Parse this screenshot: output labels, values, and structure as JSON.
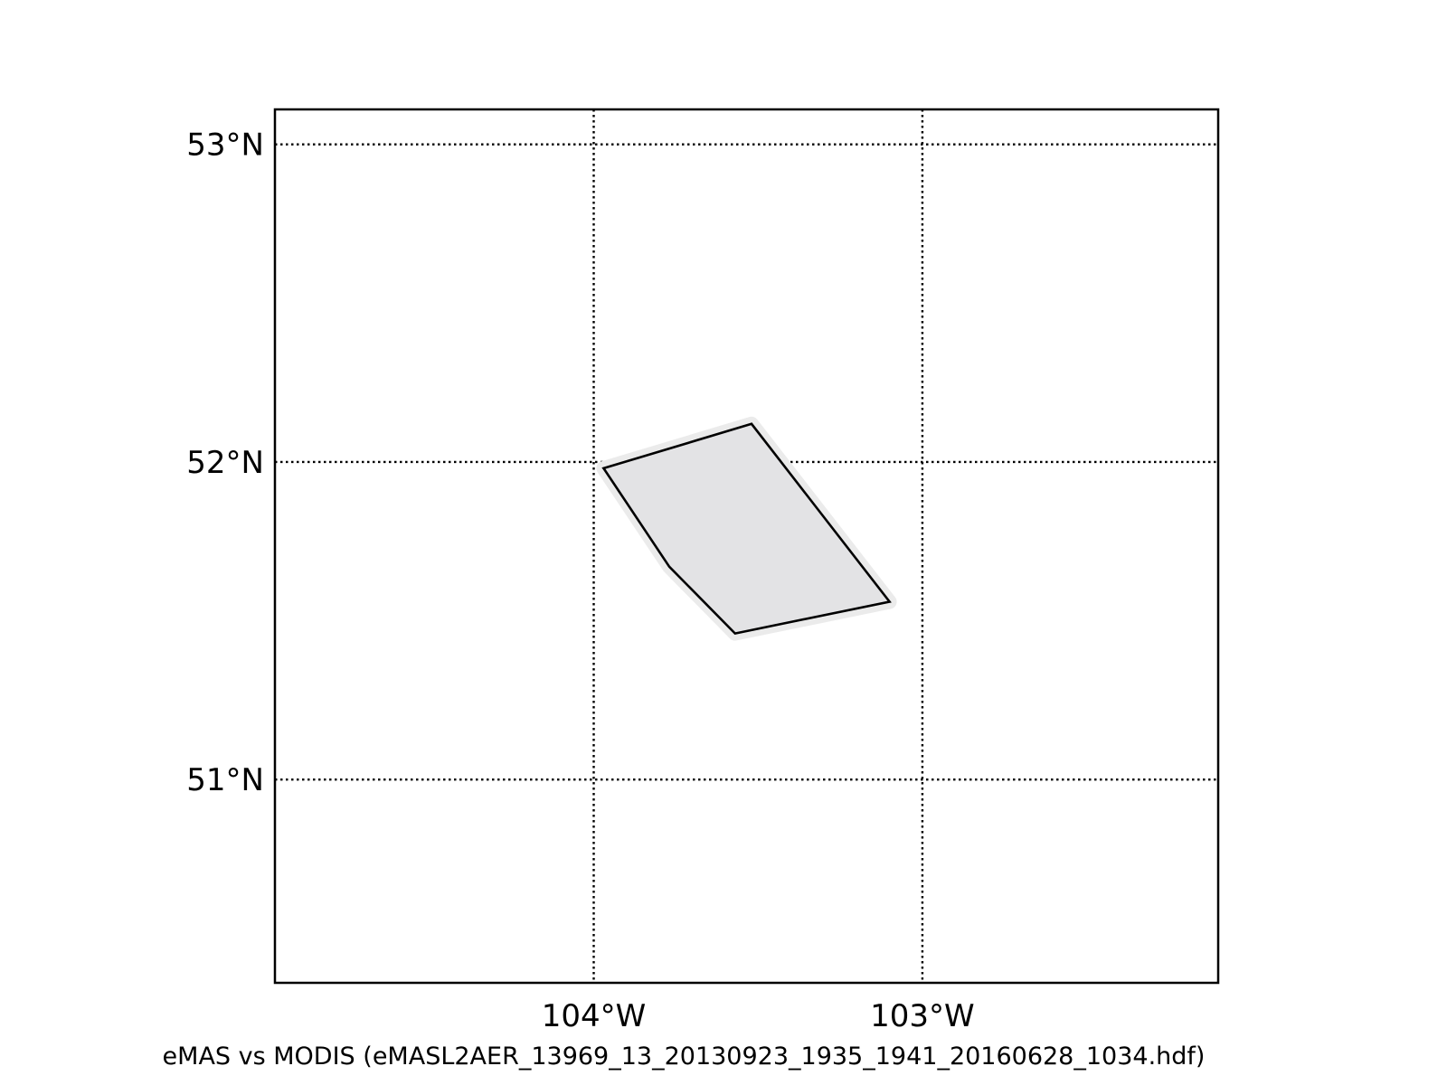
{
  "caption": "eMAS vs MODIS (eMASL2AER_13969_13_20130923_1935_1941_20160628_1034.hdf)",
  "chart_data": {
    "type": "map",
    "xlim": [
      -104.97,
      -102.1
    ],
    "ylim": [
      50.36,
      53.11
    ],
    "lon_gridlines": [
      {
        "value": -104,
        "label": "104°W"
      },
      {
        "value": -103,
        "label": "103°W"
      }
    ],
    "lat_gridlines": [
      {
        "value": 53,
        "label": "53°N"
      },
      {
        "value": 52,
        "label": "52°N"
      },
      {
        "value": 51,
        "label": "51°N"
      }
    ],
    "swath_outline": [
      [
        -103.97,
        51.98
      ],
      [
        -103.52,
        52.12
      ],
      [
        -103.1,
        51.56
      ],
      [
        -103.57,
        51.46
      ],
      [
        -103.77,
        51.67
      ]
    ],
    "swath_fill_color": "#e3e3e5",
    "swath_halo_color": "#ebebeb",
    "outline_color": "#000000",
    "grid": true
  }
}
